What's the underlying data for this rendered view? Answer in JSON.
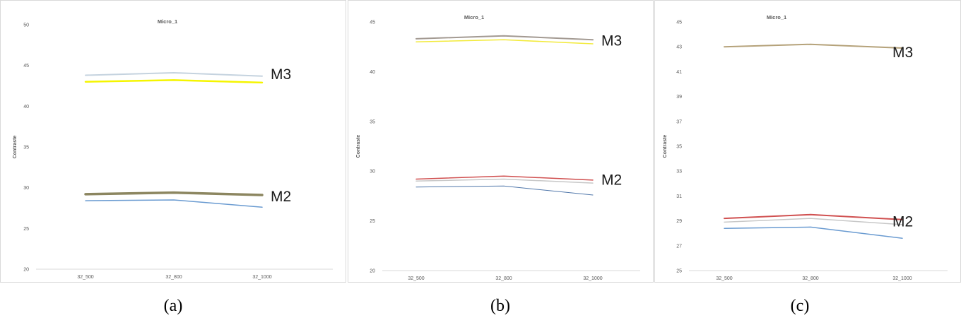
{
  "captions": [
    "(a)",
    "(b)",
    "(c)"
  ],
  "chart_data": [
    {
      "type": "line",
      "title": "Micro_1",
      "ylabel": "Contraste",
      "categories": [
        "32_500",
        "32_800",
        "32_1000"
      ],
      "ylim": [
        20,
        50
      ],
      "yticks": [
        20,
        25,
        30,
        35,
        40,
        45,
        50
      ],
      "grid": false,
      "series": [
        {
          "values": [
            43.8,
            44.1,
            43.7
          ],
          "color": "#c5d3df",
          "width": 2
        },
        {
          "values": [
            43.0,
            43.2,
            42.9
          ],
          "color": "#f5f500",
          "width": 2.5
        },
        {
          "values": [
            29.2,
            29.4,
            29.1
          ],
          "color": "#8c8660",
          "width": 3.5
        },
        {
          "values": [
            28.4,
            28.5,
            27.6
          ],
          "color": "#6a9bd1",
          "width": 1.5
        }
      ],
      "annotations": [
        {
          "text": "M3",
          "x": "32_1000",
          "y": 44.0
        },
        {
          "text": "M2",
          "x": "32_1000",
          "y": 29.0
        }
      ]
    },
    {
      "type": "line",
      "title": "Micro_1",
      "ylabel": "Contraste",
      "categories": [
        "32_500",
        "32_800",
        "32_1000"
      ],
      "ylim": [
        20,
        45
      ],
      "yticks": [
        20,
        25,
        30,
        35,
        40,
        45
      ],
      "grid": false,
      "series": [
        {
          "values": [
            43.3,
            43.6,
            43.2
          ],
          "color": "#a39a92",
          "width": 2
        },
        {
          "values": [
            43.0,
            43.2,
            42.8
          ],
          "color": "#f2ea3a",
          "width": 1.5
        },
        {
          "values": [
            29.2,
            29.5,
            29.1
          ],
          "color": "#d05050",
          "width": 1.5
        },
        {
          "values": [
            29.0,
            29.2,
            28.8
          ],
          "color": "#c8c8c8",
          "width": 1.5
        },
        {
          "values": [
            28.4,
            28.5,
            27.6
          ],
          "color": "#5077aa",
          "width": 1
        }
      ],
      "annotations": [
        {
          "text": "M3",
          "x": "32_1000",
          "y": 43.2
        },
        {
          "text": "M2",
          "x": "32_1000",
          "y": 29.2
        }
      ]
    },
    {
      "type": "line",
      "title": "Micro_1",
      "ylabel": "Contraste",
      "categories": [
        "32_500",
        "32_800",
        "32_1000"
      ],
      "ylim": [
        25,
        45
      ],
      "yticks": [
        25,
        27,
        29,
        31,
        33,
        35,
        37,
        39,
        41,
        43,
        45
      ],
      "grid": false,
      "series": [
        {
          "values": [
            43.0,
            43.2,
            42.9
          ],
          "color": "#b5a27a",
          "width": 2
        },
        {
          "values": [
            29.2,
            29.5,
            29.1
          ],
          "color": "#d05050",
          "width": 2
        },
        {
          "values": [
            28.9,
            29.2,
            28.7
          ],
          "color": "#c8c8c8",
          "width": 1.5
        },
        {
          "values": [
            28.4,
            28.5,
            27.6
          ],
          "color": "#6a9bd1",
          "width": 1.5
        }
      ],
      "annotations": [
        {
          "text": "M3",
          "x": "32_1000",
          "y": 42.6
        },
        {
          "text": "M2",
          "x": "32_1000",
          "y": 29.0
        }
      ]
    }
  ]
}
